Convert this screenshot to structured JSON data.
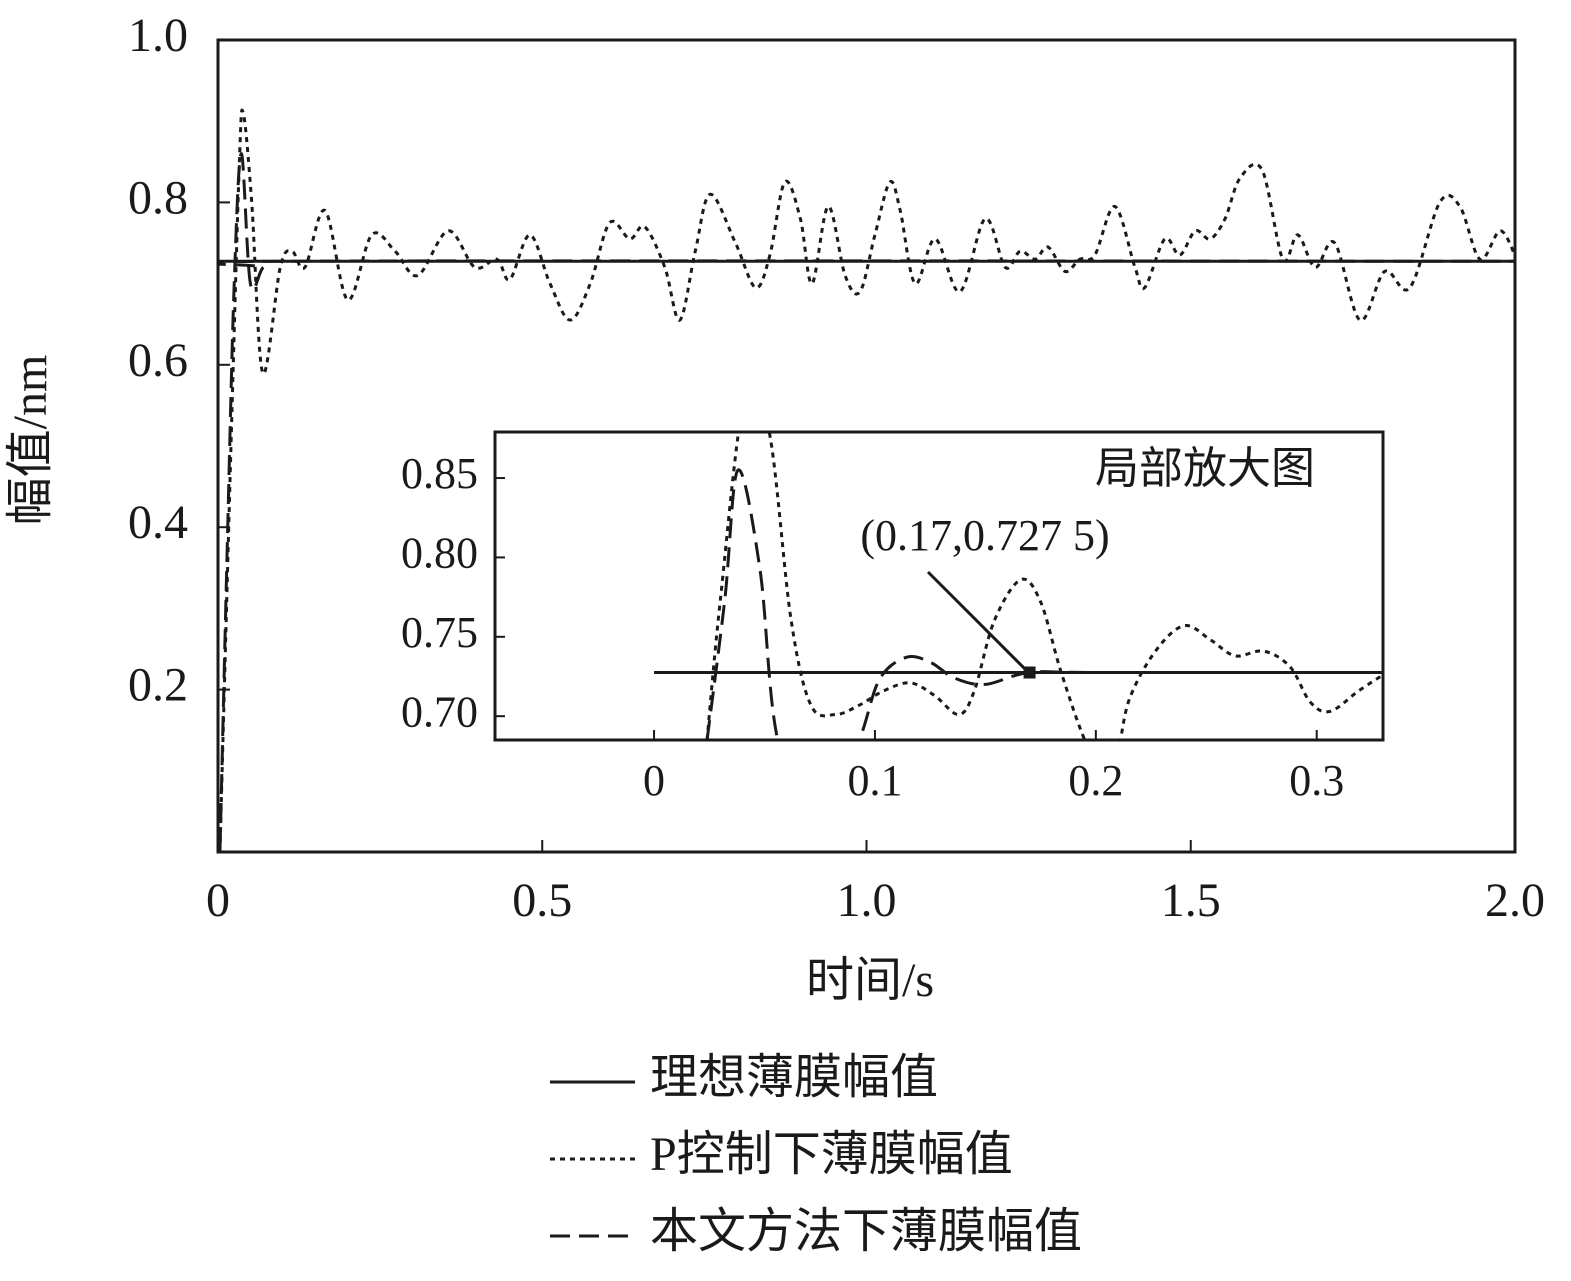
{
  "chart_data": [
    {
      "type": "line",
      "xlabel": "时间/s",
      "ylabel": "幅值/nm",
      "xlim": [
        0,
        2
      ],
      "xticks": [
        0,
        0.5,
        {
          "value": 1,
          "label": "1.0"
        },
        1.5,
        {
          "value": 2,
          "label": "2.0"
        }
      ],
      "ylim": [
        0,
        1
      ],
      "yticks": [
        0.2,
        0.4,
        0.6,
        0.8,
        {
          "value": 1,
          "label": "1.0"
        }
      ],
      "series": [
        {
          "name": "理想薄膜幅值",
          "style": "solid",
          "color": "#1a1a1a",
          "x": [
            0,
            2
          ],
          "values": [
            0.7275,
            0.7275
          ]
        },
        {
          "name": "P控制下薄膜幅值",
          "style": "dotted",
          "color": "#1a1a1a",
          "x": [
            0.003,
            0.02,
            0.033,
            0.039,
            0.052,
            0.069,
            0.096,
            0.114,
            0.134,
            0.165,
            0.2,
            0.237,
            0.273,
            0.308,
            0.355,
            0.396,
            0.43,
            0.45,
            0.481,
            0.512,
            0.543,
            0.574,
            0.604,
            0.635,
            0.658,
            0.689,
            0.712,
            0.736,
            0.759,
            0.798,
            0.829,
            0.851,
            0.874,
            0.898,
            0.916,
            0.941,
            0.967,
            0.99,
            1.013,
            1.036,
            1.052,
            1.075,
            1.106,
            1.144,
            1.183,
            1.214,
            1.237,
            1.26,
            1.28,
            1.306,
            1.329,
            1.352,
            1.383,
            1.414,
            1.429,
            1.46,
            1.483,
            1.507,
            1.53,
            1.553,
            1.576,
            1.61,
            1.642,
            1.665,
            1.692,
            1.722,
            1.761,
            1.799,
            1.838,
            1.884,
            1.915,
            1.946,
            1.977,
            2.0
          ],
          "values": [
            0,
            0.5,
            0.85,
            0.91,
            0.8,
            0.59,
            0.72,
            0.74,
            0.72,
            0.79,
            0.68,
            0.76,
            0.74,
            0.71,
            0.765,
            0.72,
            0.73,
            0.705,
            0.76,
            0.7,
            0.655,
            0.7,
            0.775,
            0.755,
            0.77,
            0.72,
            0.655,
            0.74,
            0.81,
            0.75,
            0.695,
            0.735,
            0.825,
            0.78,
            0.7,
            0.795,
            0.71,
            0.69,
            0.76,
            0.825,
            0.79,
            0.7,
            0.755,
            0.69,
            0.78,
            0.72,
            0.74,
            0.73,
            0.745,
            0.715,
            0.73,
            0.735,
            0.795,
            0.72,
            0.695,
            0.755,
            0.735,
            0.765,
            0.755,
            0.78,
            0.83,
            0.84,
            0.73,
            0.76,
            0.72,
            0.75,
            0.655,
            0.715,
            0.695,
            0.8,
            0.795,
            0.73,
            0.765,
            0.735
          ]
        },
        {
          "name": "本文方法下薄膜幅值",
          "style": "dashed",
          "color": "#1a1a1a",
          "x": [
            0.003,
            0.015,
            0.025,
            0.036,
            0.05,
            0.07,
            0.1,
            2.0
          ],
          "values": [
            0,
            0.4,
            0.7,
            0.86,
            0.7,
            0.72,
            0.7275,
            0.7275
          ]
        }
      ]
    },
    {
      "type": "line",
      "title": "局部放大图",
      "annotation": {
        "text": "(0.17,0.727 5)",
        "x": 0.17,
        "y": 0.7275
      },
      "xlim": [
        -0.072,
        0.33
      ],
      "xticks": [
        0,
        0.1,
        0.2,
        0.3
      ],
      "ylim": [
        0.685,
        0.879
      ],
      "yticks": [
        {
          "value": 0.7,
          "label": "0.70"
        },
        0.75,
        {
          "value": 0.8,
          "label": "0.80"
        },
        0.85
      ],
      "series": [
        {
          "style": "solid",
          "color": "#1a1a1a",
          "x": [
            0,
            0.33
          ],
          "values": [
            0.7275,
            0.7275
          ]
        },
        {
          "style": "dotted",
          "color": "#1a1a1a",
          "x": [
            0.024,
            0.03,
            0.041,
            0.052,
            0.062,
            0.071,
            0.082,
            0.093,
            0.104,
            0.116,
            0.127,
            0.138,
            0.145,
            0.154,
            0.166,
            0.175,
            0.184,
            0.195,
            0.202,
            0.209,
            0.215,
            0.227,
            0.24,
            0.252,
            0.263,
            0.276,
            0.288,
            0.297,
            0.306,
            0.319,
            0.33
          ],
          "values": [
            0.685,
            0.773,
            0.9,
            0.88,
            0.761,
            0.707,
            0.701,
            0.707,
            0.716,
            0.721,
            0.713,
            0.701,
            0.716,
            0.76,
            0.786,
            0.772,
            0.729,
            0.685,
            0.672,
            0.672,
            0.71,
            0.741,
            0.757,
            0.748,
            0.738,
            0.741,
            0.731,
            0.709,
            0.703,
            0.716,
            0.726
          ]
        },
        {
          "style": "dashed",
          "color": "#1a1a1a",
          "x": [
            0.024,
            0.032,
            0.038,
            0.048,
            0.056,
            0.075,
            0.093,
            0.102,
            0.114,
            0.125,
            0.136,
            0.15,
            0.17,
            0.202,
            0.33
          ],
          "values": [
            0.685,
            0.773,
            0.855,
            0.792,
            0.685,
            0.62,
            0.685,
            0.723,
            0.737,
            0.734,
            0.724,
            0.72,
            0.7275,
            0.7275,
            0.7275
          ]
        }
      ]
    }
  ]
}
